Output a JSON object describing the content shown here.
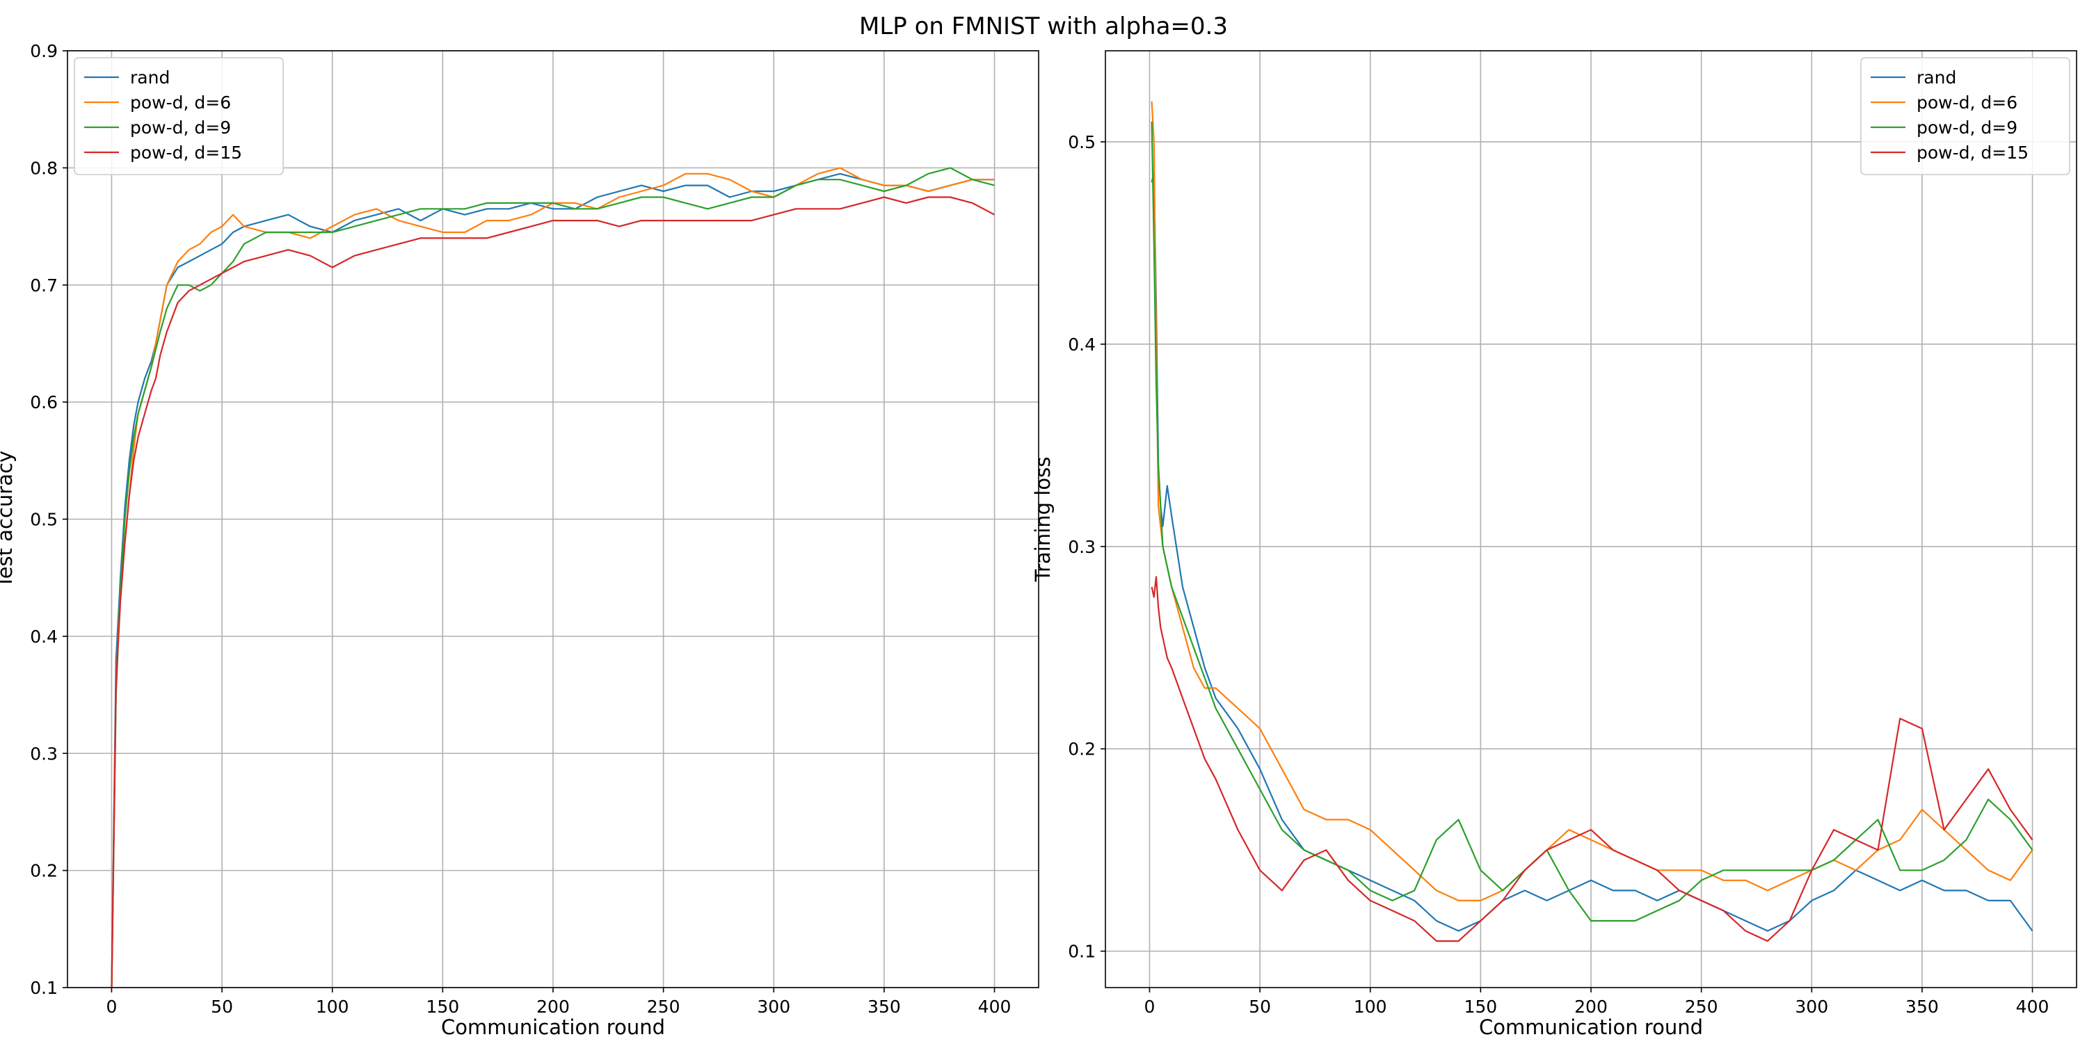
{
  "figure": {
    "title": "MLP on FMNIST with alpha=0.3"
  },
  "chart_data": [
    {
      "type": "line",
      "xlabel": "Communication round",
      "ylabel": "Test accuracy",
      "xlim": [
        -20,
        420
      ],
      "ylim": [
        0.1,
        0.9
      ],
      "xticks": [
        0,
        50,
        100,
        150,
        200,
        250,
        300,
        350,
        400
      ],
      "yticks": [
        0.1,
        0.2,
        0.3,
        0.4,
        0.5,
        0.6,
        0.7,
        0.8,
        0.9
      ],
      "grid": true,
      "legend_position": "upper left",
      "series": [
        {
          "name": "rand",
          "color": "#1f77b4",
          "x": [
            0,
            2,
            4,
            6,
            8,
            10,
            12,
            15,
            18,
            20,
            22,
            25,
            30,
            35,
            40,
            45,
            50,
            55,
            60,
            70,
            80,
            90,
            100,
            110,
            120,
            130,
            140,
            150,
            160,
            170,
            180,
            190,
            200,
            210,
            220,
            230,
            240,
            250,
            260,
            270,
            280,
            290,
            300,
            310,
            320,
            330,
            340,
            350,
            360,
            370,
            380,
            390,
            400
          ],
          "y": [
            0.1,
            0.38,
            0.45,
            0.51,
            0.55,
            0.58,
            0.6,
            0.62,
            0.635,
            0.65,
            0.67,
            0.7,
            0.715,
            0.72,
            0.725,
            0.73,
            0.735,
            0.745,
            0.75,
            0.755,
            0.76,
            0.75,
            0.745,
            0.755,
            0.76,
            0.765,
            0.755,
            0.765,
            0.76,
            0.765,
            0.765,
            0.77,
            0.765,
            0.765,
            0.775,
            0.78,
            0.785,
            0.78,
            0.785,
            0.785,
            0.775,
            0.78,
            0.78,
            0.785,
            0.79,
            0.795,
            0.79,
            0.785,
            0.785,
            0.78,
            0.785,
            0.79,
            0.79
          ]
        },
        {
          "name": "pow-d, d=6",
          "color": "#ff7f0e",
          "x": [
            0,
            2,
            4,
            6,
            8,
            10,
            12,
            15,
            18,
            20,
            22,
            25,
            30,
            35,
            40,
            45,
            50,
            55,
            60,
            70,
            80,
            90,
            100,
            110,
            120,
            130,
            140,
            150,
            160,
            170,
            180,
            190,
            200,
            210,
            220,
            230,
            240,
            250,
            260,
            270,
            280,
            290,
            300,
            310,
            320,
            330,
            340,
            350,
            360,
            370,
            380,
            390,
            400
          ],
          "y": [
            0.1,
            0.36,
            0.44,
            0.48,
            0.52,
            0.56,
            0.59,
            0.61,
            0.63,
            0.65,
            0.67,
            0.7,
            0.72,
            0.73,
            0.735,
            0.745,
            0.75,
            0.76,
            0.75,
            0.745,
            0.745,
            0.74,
            0.75,
            0.76,
            0.765,
            0.755,
            0.75,
            0.745,
            0.745,
            0.755,
            0.755,
            0.76,
            0.77,
            0.77,
            0.765,
            0.775,
            0.78,
            0.785,
            0.795,
            0.795,
            0.79,
            0.78,
            0.775,
            0.785,
            0.795,
            0.8,
            0.79,
            0.785,
            0.785,
            0.78,
            0.785,
            0.79,
            0.79
          ]
        },
        {
          "name": "pow-d, d=9",
          "color": "#2ca02c",
          "x": [
            0,
            2,
            4,
            6,
            8,
            10,
            12,
            15,
            18,
            20,
            22,
            25,
            30,
            35,
            40,
            45,
            50,
            55,
            60,
            70,
            80,
            90,
            100,
            110,
            120,
            130,
            140,
            150,
            160,
            170,
            180,
            190,
            200,
            210,
            220,
            230,
            240,
            250,
            260,
            270,
            280,
            290,
            300,
            310,
            320,
            330,
            340,
            350,
            360,
            370,
            380,
            390,
            400
          ],
          "y": [
            0.1,
            0.35,
            0.44,
            0.5,
            0.54,
            0.57,
            0.59,
            0.61,
            0.63,
            0.645,
            0.66,
            0.68,
            0.7,
            0.7,
            0.695,
            0.7,
            0.71,
            0.72,
            0.735,
            0.745,
            0.745,
            0.745,
            0.745,
            0.75,
            0.755,
            0.76,
            0.765,
            0.765,
            0.765,
            0.77,
            0.77,
            0.77,
            0.77,
            0.765,
            0.765,
            0.77,
            0.775,
            0.775,
            0.77,
            0.765,
            0.77,
            0.775,
            0.775,
            0.785,
            0.79,
            0.79,
            0.785,
            0.78,
            0.785,
            0.795,
            0.8,
            0.79,
            0.785
          ]
        },
        {
          "name": "pow-d, d=15",
          "color": "#d62728",
          "x": [
            0,
            2,
            4,
            6,
            8,
            10,
            12,
            15,
            18,
            20,
            22,
            25,
            30,
            35,
            40,
            45,
            50,
            55,
            60,
            70,
            80,
            90,
            100,
            110,
            120,
            130,
            140,
            150,
            160,
            170,
            180,
            190,
            200,
            210,
            220,
            230,
            240,
            250,
            260,
            270,
            280,
            290,
            300,
            310,
            320,
            330,
            340,
            350,
            360,
            370,
            380,
            390,
            400
          ],
          "y": [
            0.1,
            0.36,
            0.43,
            0.48,
            0.52,
            0.55,
            0.57,
            0.59,
            0.61,
            0.62,
            0.64,
            0.66,
            0.685,
            0.695,
            0.7,
            0.705,
            0.71,
            0.715,
            0.72,
            0.725,
            0.73,
            0.725,
            0.715,
            0.725,
            0.73,
            0.735,
            0.74,
            0.74,
            0.74,
            0.74,
            0.745,
            0.75,
            0.755,
            0.755,
            0.755,
            0.75,
            0.755,
            0.755,
            0.755,
            0.755,
            0.755,
            0.755,
            0.76,
            0.765,
            0.765,
            0.765,
            0.77,
            0.775,
            0.77,
            0.775,
            0.775,
            0.77,
            0.76
          ]
        }
      ]
    },
    {
      "type": "line",
      "xlabel": "Communication round",
      "ylabel": "Training loss",
      "xlim": [
        -20,
        420
      ],
      "ylim": [
        0.082,
        0.545
      ],
      "xticks": [
        0,
        50,
        100,
        150,
        200,
        250,
        300,
        350,
        400
      ],
      "yticks": [
        0.1,
        0.2,
        0.3,
        0.4,
        0.5
      ],
      "grid": true,
      "legend_position": "upper right",
      "series": [
        {
          "name": "rand",
          "color": "#1f77b4",
          "x": [
            1,
            2,
            3,
            4,
            5,
            6,
            8,
            10,
            15,
            20,
            25,
            30,
            40,
            50,
            60,
            70,
            80,
            90,
            100,
            110,
            120,
            130,
            140,
            150,
            160,
            170,
            180,
            190,
            200,
            210,
            220,
            230,
            240,
            250,
            260,
            270,
            280,
            290,
            300,
            310,
            320,
            330,
            340,
            350,
            360,
            370,
            380,
            390,
            400
          ],
          "y": [
            0.48,
            0.485,
            0.42,
            0.34,
            0.32,
            0.31,
            0.33,
            0.315,
            0.28,
            0.26,
            0.24,
            0.225,
            0.21,
            0.19,
            0.165,
            0.15,
            0.145,
            0.14,
            0.135,
            0.13,
            0.125,
            0.115,
            0.11,
            0.115,
            0.125,
            0.13,
            0.125,
            0.13,
            0.135,
            0.13,
            0.13,
            0.125,
            0.13,
            0.125,
            0.12,
            0.115,
            0.11,
            0.115,
            0.125,
            0.13,
            0.14,
            0.135,
            0.13,
            0.135,
            0.13,
            0.13,
            0.125,
            0.125,
            0.11
          ]
        },
        {
          "name": "pow-d, d=6",
          "color": "#ff7f0e",
          "x": [
            1,
            2,
            3,
            4,
            5,
            6,
            8,
            10,
            15,
            20,
            25,
            30,
            40,
            50,
            60,
            70,
            80,
            90,
            100,
            110,
            120,
            130,
            140,
            150,
            160,
            170,
            180,
            190,
            200,
            210,
            220,
            230,
            240,
            250,
            260,
            270,
            280,
            290,
            300,
            310,
            320,
            330,
            340,
            350,
            360,
            370,
            380,
            390,
            400
          ],
          "y": [
            0.52,
            0.5,
            0.4,
            0.32,
            0.31,
            0.3,
            0.29,
            0.28,
            0.26,
            0.24,
            0.23,
            0.23,
            0.22,
            0.21,
            0.19,
            0.17,
            0.165,
            0.165,
            0.16,
            0.15,
            0.14,
            0.13,
            0.125,
            0.125,
            0.13,
            0.14,
            0.15,
            0.16,
            0.155,
            0.15,
            0.145,
            0.14,
            0.14,
            0.14,
            0.135,
            0.135,
            0.13,
            0.135,
            0.14,
            0.145,
            0.14,
            0.15,
            0.155,
            0.17,
            0.16,
            0.15,
            0.14,
            0.135,
            0.15
          ]
        },
        {
          "name": "pow-d, d=9",
          "color": "#2ca02c",
          "x": [
            1,
            2,
            3,
            4,
            5,
            6,
            8,
            10,
            15,
            20,
            25,
            30,
            40,
            50,
            60,
            70,
            80,
            90,
            100,
            110,
            120,
            130,
            140,
            150,
            160,
            170,
            180,
            190,
            200,
            210,
            220,
            230,
            240,
            250,
            260,
            270,
            280,
            290,
            300,
            310,
            320,
            330,
            340,
            350,
            360,
            370,
            380,
            390,
            400
          ],
          "y": [
            0.51,
            0.45,
            0.38,
            0.34,
            0.32,
            0.3,
            0.29,
            0.28,
            0.265,
            0.25,
            0.235,
            0.22,
            0.2,
            0.18,
            0.16,
            0.15,
            0.145,
            0.14,
            0.13,
            0.125,
            0.13,
            0.155,
            0.165,
            0.14,
            0.13,
            0.14,
            0.15,
            0.13,
            0.115,
            0.115,
            0.115,
            0.12,
            0.125,
            0.135,
            0.14,
            0.14,
            0.14,
            0.14,
            0.14,
            0.145,
            0.155,
            0.165,
            0.14,
            0.14,
            0.145,
            0.155,
            0.175,
            0.165,
            0.15
          ]
        },
        {
          "name": "pow-d, d=15",
          "color": "#d62728",
          "x": [
            1,
            2,
            3,
            4,
            5,
            6,
            8,
            10,
            15,
            20,
            25,
            30,
            40,
            50,
            60,
            70,
            80,
            90,
            100,
            110,
            120,
            130,
            140,
            150,
            160,
            170,
            180,
            190,
            200,
            210,
            220,
            230,
            240,
            250,
            260,
            270,
            280,
            290,
            300,
            310,
            320,
            330,
            340,
            350,
            360,
            370,
            380,
            390,
            400
          ],
          "y": [
            0.28,
            0.275,
            0.285,
            0.27,
            0.26,
            0.255,
            0.245,
            0.24,
            0.225,
            0.21,
            0.195,
            0.185,
            0.16,
            0.14,
            0.13,
            0.145,
            0.15,
            0.135,
            0.125,
            0.12,
            0.115,
            0.105,
            0.105,
            0.115,
            0.125,
            0.14,
            0.15,
            0.155,
            0.16,
            0.15,
            0.145,
            0.14,
            0.13,
            0.125,
            0.12,
            0.11,
            0.105,
            0.115,
            0.14,
            0.16,
            0.155,
            0.15,
            0.215,
            0.21,
            0.16,
            0.175,
            0.19,
            0.17,
            0.155
          ]
        }
      ]
    }
  ]
}
